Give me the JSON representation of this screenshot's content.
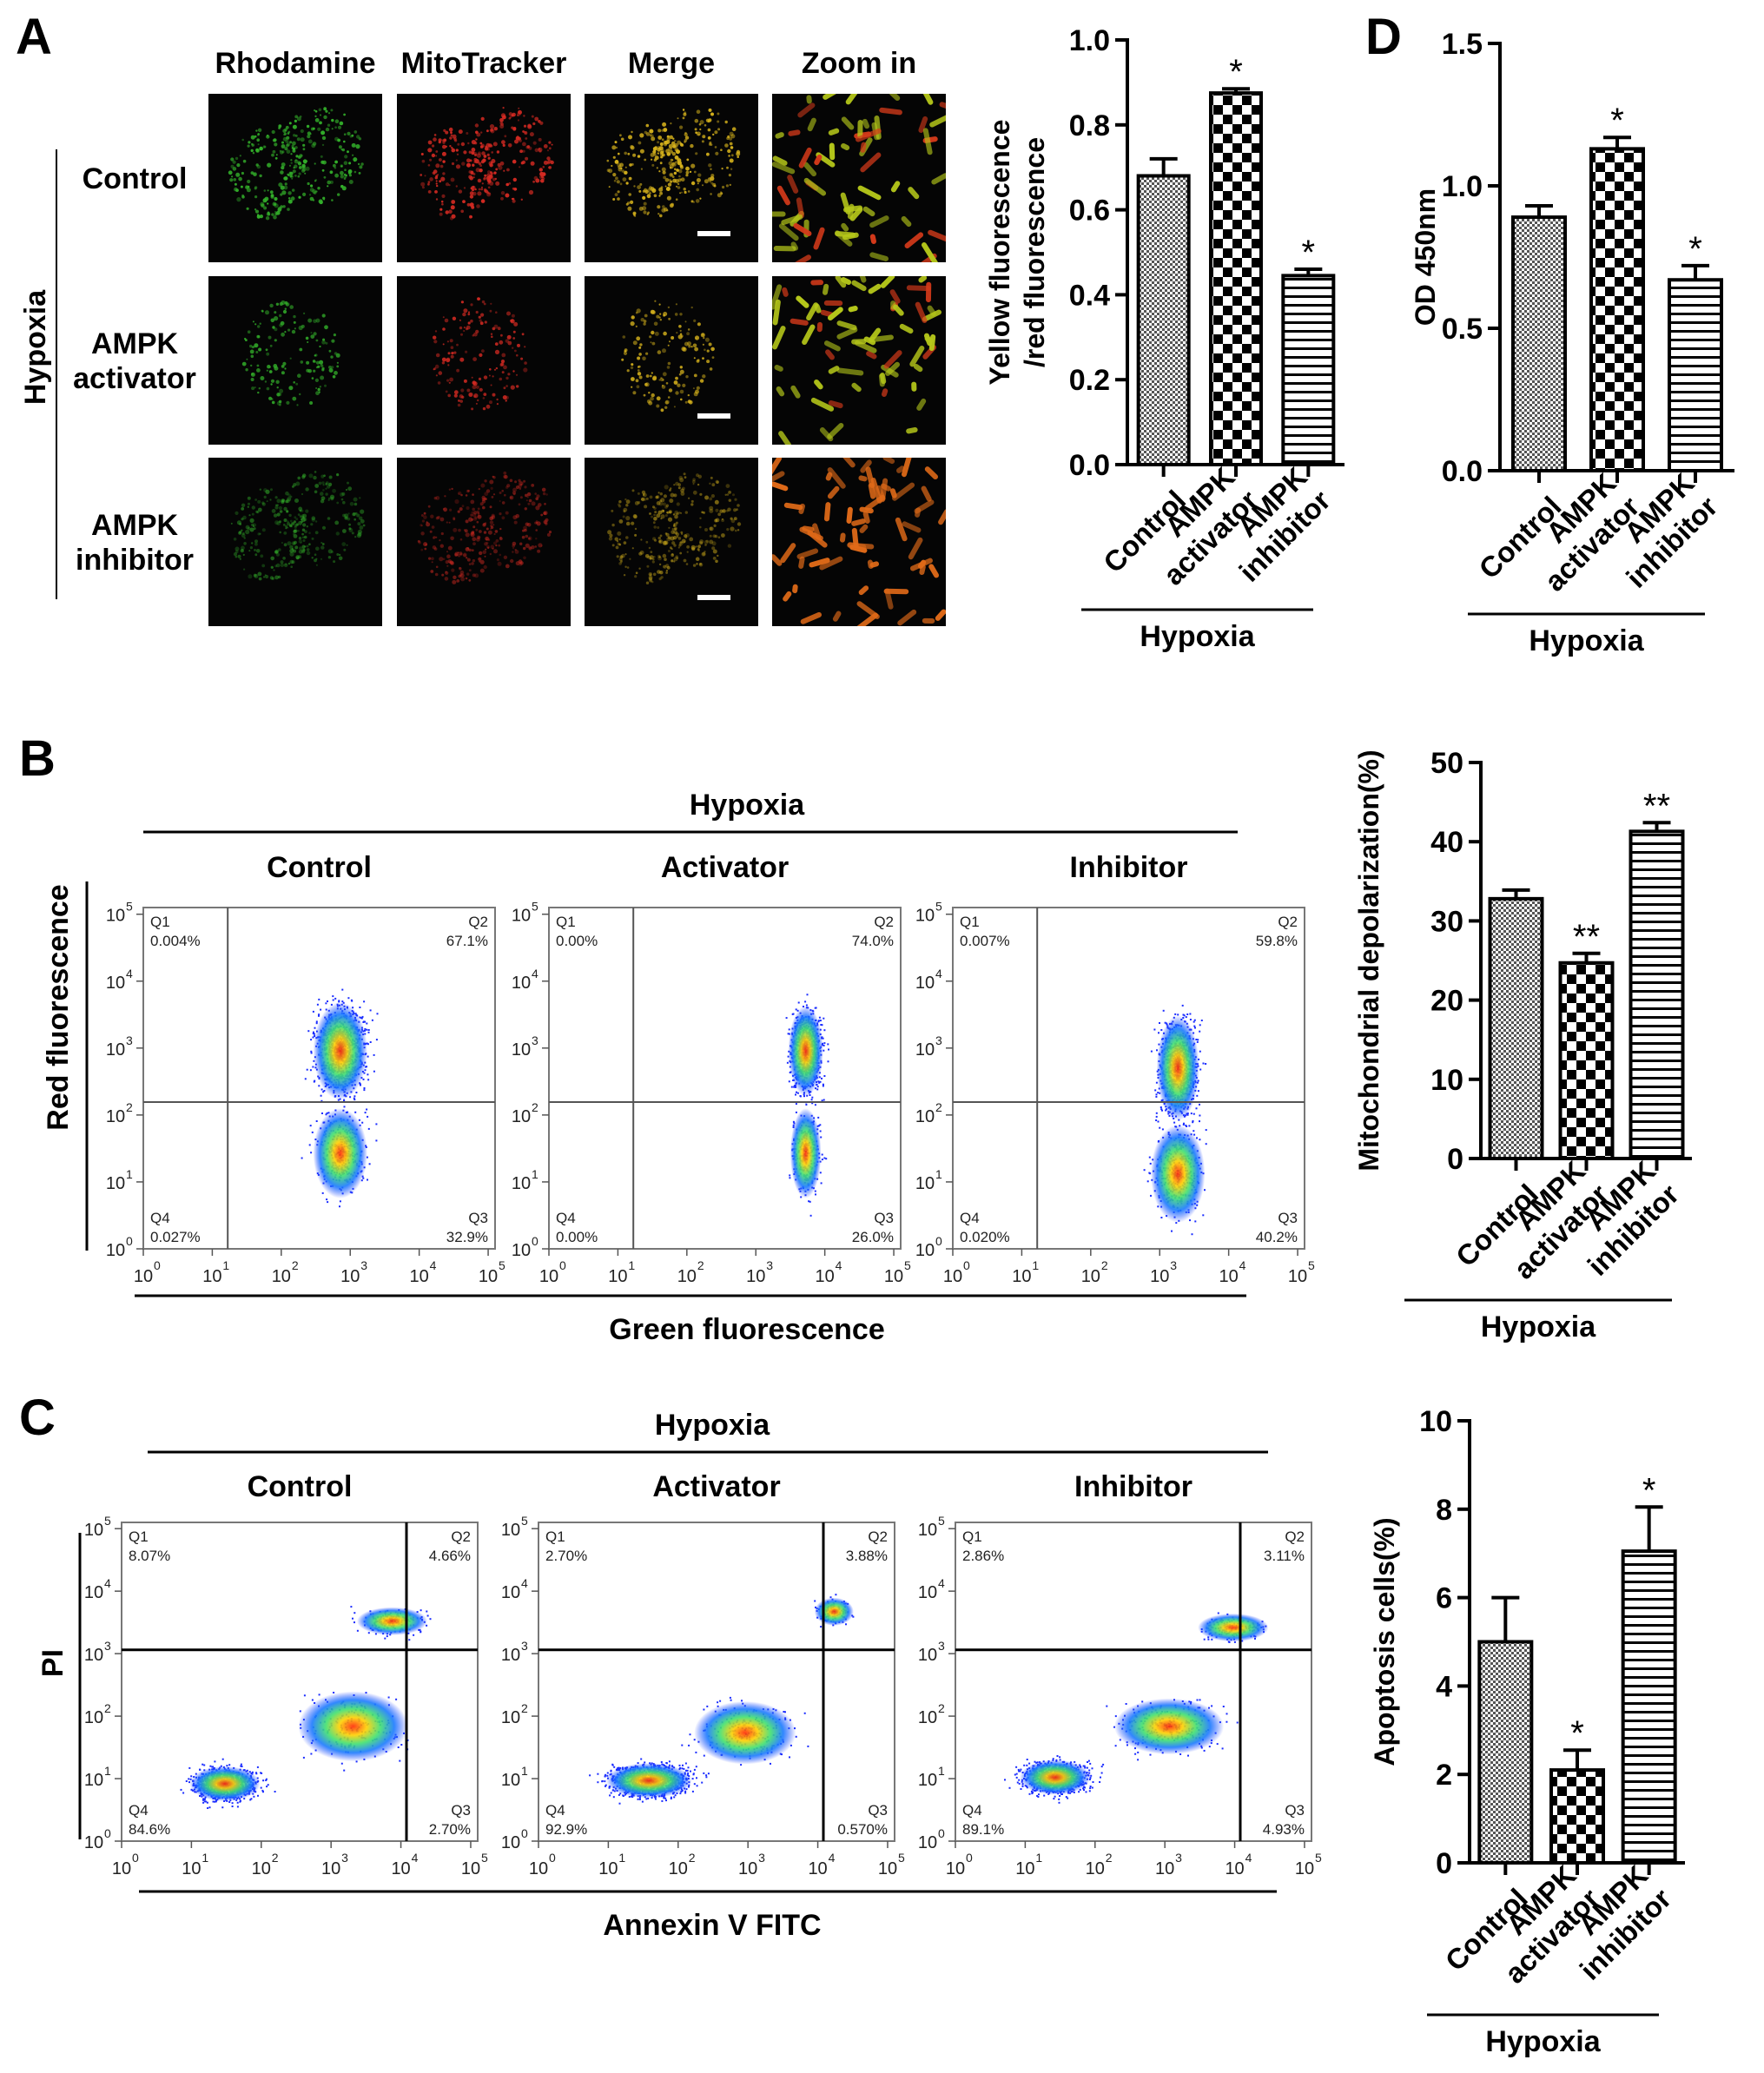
{
  "panel_letters": {
    "a": "A",
    "b": "B",
    "c": "C",
    "d": "D"
  },
  "micrographs": {
    "columns": [
      "Rhodamine",
      "MitoTracker",
      "Merge",
      "Zoom in"
    ],
    "rows": [
      {
        "label_lines": [
          "Control"
        ]
      },
      {
        "label_lines": [
          "AMPK",
          "activator"
        ]
      },
      {
        "label_lines": [
          "AMPK",
          "inhibitor"
        ]
      }
    ],
    "group_label": "Hypoxia",
    "colors": {
      "green": "#33b02a",
      "red": "#d42a22",
      "yellow": "#d6b21c",
      "zoom_yellow": "#b6c81a",
      "zoom_orange": "#e06a18"
    }
  },
  "flow_b": {
    "group_label": "Hypoxia",
    "x_axis_label": "Green fluorescence",
    "y_axis_label": "Red fluorescence",
    "tick_labels": [
      "10",
      "10",
      "10",
      "10",
      "10",
      "10"
    ],
    "tick_exponents": [
      "0",
      "1",
      "2",
      "3",
      "4",
      "5"
    ],
    "plots": [
      {
        "title": "Control",
        "q1_label": "Q1",
        "q1": "0.004%",
        "q2_label": "Q2",
        "q2": "67.1%",
        "q3_label": "Q3",
        "q3": "32.9%",
        "q4_label": "Q4",
        "q4": "0.027%"
      },
      {
        "title": "Activator",
        "q1_label": "Q1",
        "q1": "0.00%",
        "q2_label": "Q2",
        "q2": "74.0%",
        "q3_label": "Q3",
        "q3": "26.0%",
        "q4_label": "Q4",
        "q4": "0.00%"
      },
      {
        "title": "Inhibitor",
        "q1_label": "Q1",
        "q1": "0.007%",
        "q2_label": "Q2",
        "q2": "59.8%",
        "q3_label": "Q3",
        "q3": "40.2%",
        "q4_label": "Q4",
        "q4": "0.020%"
      }
    ]
  },
  "flow_c": {
    "group_label": "Hypoxia",
    "x_axis_label": "Annexin V FITC",
    "y_axis_label": "PI",
    "tick_labels": [
      "10",
      "10",
      "10",
      "10",
      "10",
      "10"
    ],
    "tick_exponents": [
      "0",
      "1",
      "2",
      "3",
      "4",
      "5"
    ],
    "plots": [
      {
        "title": "Control",
        "q1_label": "Q1",
        "q1": "8.07%",
        "q2_label": "Q2",
        "q2": "4.66%",
        "q3_label": "Q3",
        "q3": "2.70%",
        "q4_label": "Q4",
        "q4": "84.6%"
      },
      {
        "title": "Activator",
        "q1_label": "Q1",
        "q1": "2.70%",
        "q2_label": "Q2",
        "q2": "3.88%",
        "q3_label": "Q3",
        "q3": "0.570%",
        "q4_label": "Q4",
        "q4": "92.9%"
      },
      {
        "title": "Inhibitor",
        "q1_label": "Q1",
        "q1": "2.86%",
        "q2_label": "Q2",
        "q2": "3.11%",
        "q3_label": "Q3",
        "q3": "4.93%",
        "q4_label": "Q4",
        "q4": "89.1%"
      }
    ]
  },
  "chart_data": [
    {
      "id": "A-bar",
      "type": "bar",
      "categories": [
        [
          "Control"
        ],
        [
          "AMPK",
          "activator"
        ],
        [
          "AMPK",
          "inhibitor"
        ]
      ],
      "values": [
        0.68,
        0.875,
        0.445
      ],
      "errors": [
        0.04,
        0.01,
        0.015
      ],
      "significance": [
        "",
        "*",
        "*"
      ],
      "patterns": [
        "fine",
        "checker",
        "hlines"
      ],
      "ylabel_lines": [
        "Yellow fluorescence",
        "/red fluorescence"
      ],
      "ylim": [
        0,
        1.0
      ],
      "yticks": [
        0.0,
        0.2,
        0.4,
        0.6,
        0.8,
        1.0
      ],
      "ytick_labels": [
        "0.0",
        "0.2",
        "0.4",
        "0.6",
        "0.8",
        "1.0"
      ],
      "group_label": "Hypoxia"
    },
    {
      "id": "D-bar",
      "type": "bar",
      "categories": [
        [
          "Control"
        ],
        [
          "AMPK",
          "activator"
        ],
        [
          "AMPK",
          "inhibitor"
        ]
      ],
      "values": [
        0.89,
        1.13,
        0.67
      ],
      "errors": [
        0.04,
        0.04,
        0.05
      ],
      "significance": [
        "",
        "*",
        "*"
      ],
      "patterns": [
        "fine",
        "checker",
        "hlines"
      ],
      "ylabel_lines": [
        "OD 450nm"
      ],
      "ylim": [
        0,
        1.5
      ],
      "yticks": [
        0.0,
        0.5,
        1.0,
        1.5
      ],
      "ytick_labels": [
        "0.0",
        "0.5",
        "1.0",
        "1.5"
      ],
      "group_label": "Hypoxia"
    },
    {
      "id": "B-bar",
      "type": "bar",
      "categories": [
        [
          "Control"
        ],
        [
          "AMPK",
          "activator"
        ],
        [
          "AMPK",
          "inhibitor"
        ]
      ],
      "values": [
        32.8,
        24.7,
        41.3
      ],
      "errors": [
        1.1,
        1.2,
        1.1
      ],
      "significance": [
        "",
        "**",
        "**"
      ],
      "patterns": [
        "fine",
        "checker",
        "hlines"
      ],
      "ylabel_lines": [
        "Mitochondrial depolarization(%)"
      ],
      "ylim": [
        0,
        50
      ],
      "yticks": [
        0,
        10,
        20,
        30,
        40,
        50
      ],
      "ytick_labels": [
        "0",
        "10",
        "20",
        "30",
        "40",
        "50"
      ],
      "group_label": "Hypoxia"
    },
    {
      "id": "C-bar",
      "type": "bar",
      "categories": [
        [
          "Control"
        ],
        [
          "AMPK",
          "activator"
        ],
        [
          "AMPK",
          "inhibitor"
        ]
      ],
      "values": [
        5.0,
        2.1,
        7.05
      ],
      "errors": [
        1.0,
        0.45,
        1.0
      ],
      "significance": [
        "",
        "*",
        "*"
      ],
      "patterns": [
        "fine",
        "checker",
        "hlines"
      ],
      "ylabel_lines": [
        "Apoptosis cells(%)"
      ],
      "ylim": [
        0,
        10
      ],
      "yticks": [
        0,
        2,
        4,
        6,
        8,
        10
      ],
      "ytick_labels": [
        "0",
        "2",
        "4",
        "6",
        "8",
        "10"
      ],
      "group_label": "Hypoxia"
    }
  ]
}
